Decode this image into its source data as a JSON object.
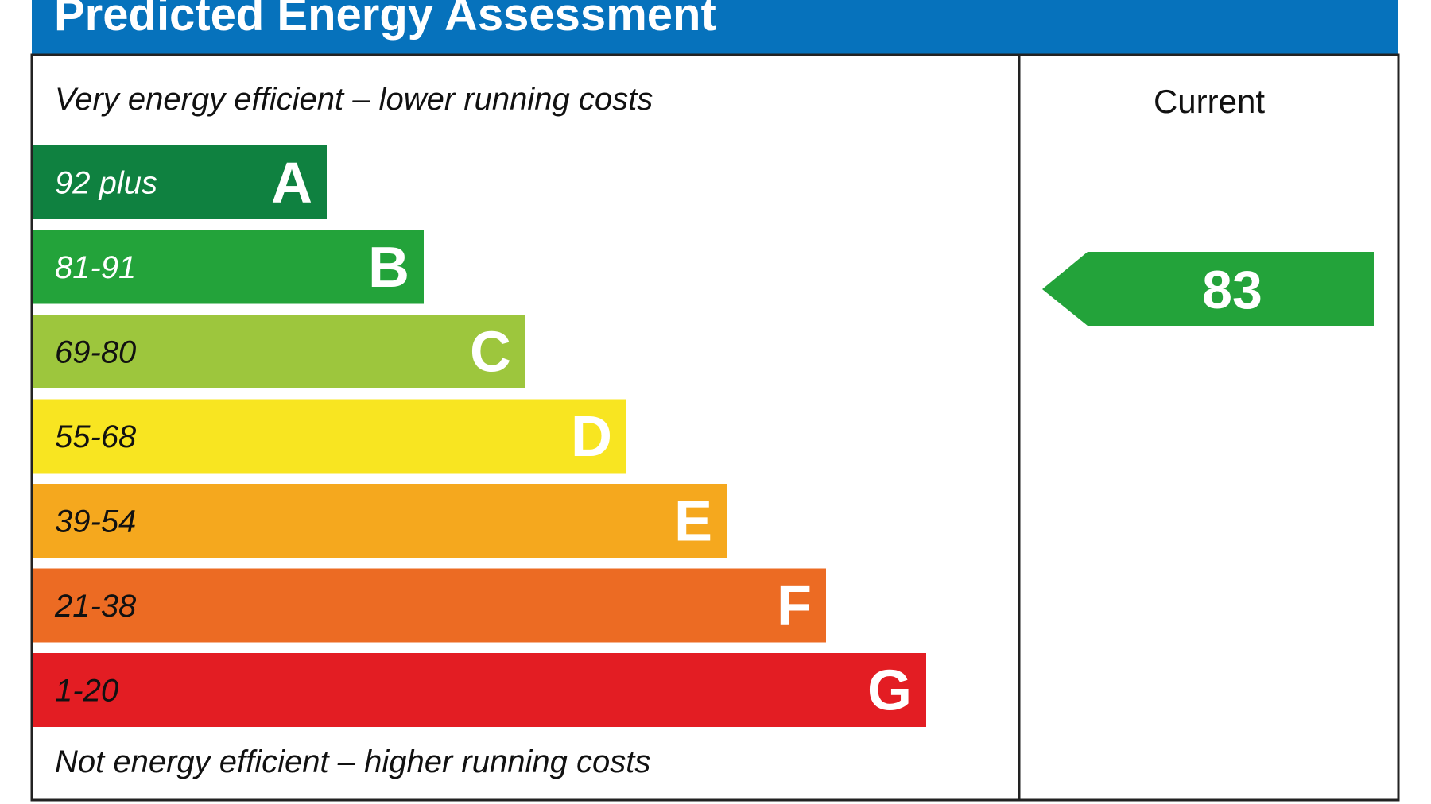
{
  "header": {
    "title": "Predicted Energy Assessment"
  },
  "top_label": "Very energy efficient – lower running costs",
  "bottom_label": "Not energy efficient – higher running costs",
  "bands": [
    {
      "range": "92 plus",
      "letter": "A",
      "color": "#0f8140",
      "text_color": "#ffffff"
    },
    {
      "range": "81-91",
      "letter": "B",
      "color": "#23a33a",
      "text_color": "#ffffff"
    },
    {
      "range": "69-80",
      "letter": "C",
      "color": "#9dc63d",
      "text_color": "#111111"
    },
    {
      "range": "55-68",
      "letter": "D",
      "color": "#f8e521",
      "text_color": "#111111"
    },
    {
      "range": "39-54",
      "letter": "E",
      "color": "#f5a81e",
      "text_color": "#111111"
    },
    {
      "range": "21-38",
      "letter": "F",
      "color": "#ec6b23",
      "text_color": "#111111"
    },
    {
      "range": "1-20",
      "letter": "G",
      "color": "#e31d23",
      "text_color": "#111111"
    }
  ],
  "current": {
    "label": "Current",
    "rating": 83,
    "color": "#23a33a"
  }
}
